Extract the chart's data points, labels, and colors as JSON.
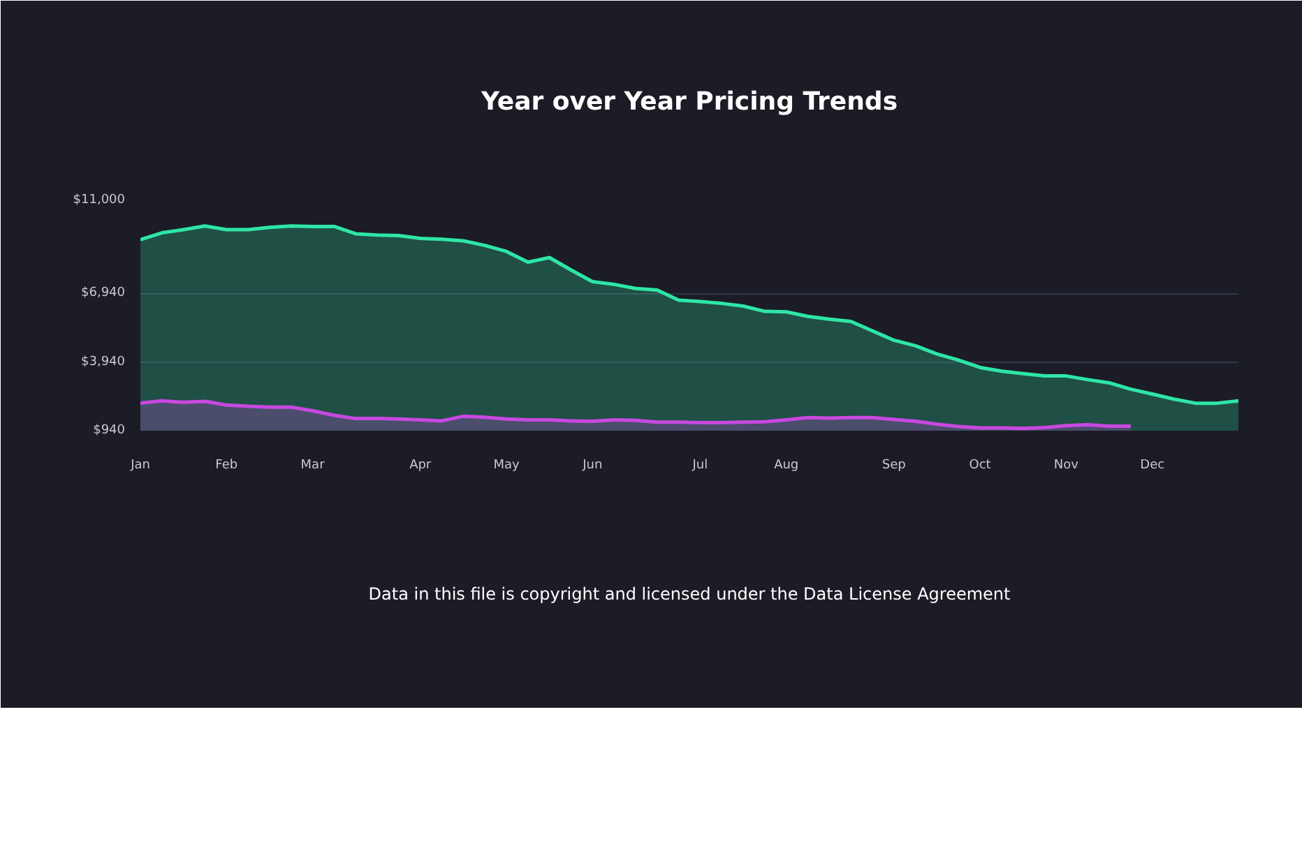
{
  "chart_data": {
    "type": "area",
    "title": "Year over Year Pricing Trends",
    "categories": [
      "Jan",
      null,
      null,
      null,
      "Feb",
      null,
      null,
      null,
      "Mar",
      null,
      null,
      null,
      null,
      "Apr",
      null,
      null,
      null,
      "May",
      null,
      null,
      null,
      "Jun",
      null,
      null,
      null,
      null,
      "Jul",
      null,
      null,
      null,
      "Aug",
      null,
      null,
      null,
      null,
      "Sep",
      null,
      null,
      null,
      "Oct",
      null,
      null,
      null,
      "Nov",
      null,
      null,
      null,
      "Dec",
      null,
      null,
      null,
      null
    ],
    "series": [
      {
        "color": "#2ee6a6",
        "values": [
          9280,
          9580,
          9720,
          9880,
          9720,
          9720,
          9820,
          9880,
          9860,
          9860,
          9540,
          9480,
          9460,
          9340,
          9300,
          9230,
          9030,
          8770,
          8300,
          8500,
          7960,
          7450,
          7330,
          7150,
          7080,
          6640,
          6580,
          6500,
          6380,
          6150,
          6130,
          5930,
          5810,
          5710,
          5300,
          4890,
          4650,
          4290,
          4020,
          3700,
          3540,
          3430,
          3330,
          3330,
          3170,
          3030,
          2750,
          2540,
          2320,
          2140,
          2140,
          2240
        ]
      },
      {
        "color": "#c848e0",
        "values": [
          2140,
          2240,
          2180,
          2220,
          2060,
          2010,
          1970,
          1970,
          1810,
          1610,
          1470,
          1470,
          1450,
          1410,
          1370,
          1570,
          1530,
          1450,
          1410,
          1410,
          1370,
          1350,
          1410,
          1390,
          1310,
          1310,
          1290,
          1290,
          1310,
          1330,
          1410,
          1510,
          1490,
          1510,
          1510,
          1430,
          1350,
          1220,
          1120,
          1060,
          1060,
          1040,
          1080,
          1160,
          1200,
          1140,
          1140,
          null,
          null,
          null,
          null,
          null
        ]
      }
    ],
    "ylim": [
      940,
      11000
    ],
    "yticks": [
      {
        "value": 940,
        "label": "$940"
      },
      {
        "value": 3940,
        "label": "$3,940"
      },
      {
        "value": 6940,
        "label": "$6,940"
      },
      {
        "value": 11000,
        "label": "$11,000"
      }
    ],
    "grid": "y",
    "annotations": [
      "Data in this file is copyright and licensed under the Data License Agreement"
    ]
  }
}
